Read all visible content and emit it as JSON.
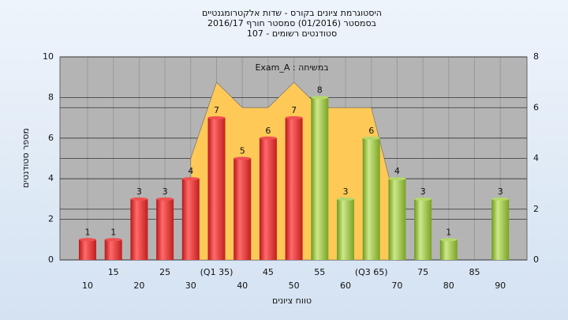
{
  "chart_data": {
    "type": "bar",
    "title": [
      "היסטוגרמת ציונים בקורס - שדות אלקטרומגנטיים",
      "בסמסטר (01/2016) סמסטר חורף 2016/17",
      "סטודנטים רשומים - 107"
    ],
    "annotation": "Exam_A : במשיחה",
    "x_label": "טווח ציונים",
    "y_label": "מספר סטודנטים",
    "categories": [
      "10",
      "15",
      "20",
      "25",
      "30",
      "(Q1 35)",
      "40",
      "45",
      "50",
      "55",
      "60",
      "(Q3 65)",
      "70",
      "75",
      "80",
      "85",
      "90"
    ],
    "series": [
      {
        "color": "#e83434",
        "values": [
          1,
          1,
          3,
          3,
          4,
          7,
          5,
          6,
          7,
          null,
          null,
          null,
          null,
          null,
          null,
          null,
          null
        ]
      },
      {
        "color": "#9cc43c",
        "values": [
          null,
          null,
          null,
          null,
          null,
          null,
          null,
          null,
          null,
          8,
          3,
          6,
          4,
          3,
          1,
          null,
          3
        ]
      },
      {
        "type": "area",
        "axis": "y2",
        "color": "#ffc957",
        "values": [
          null,
          null,
          null,
          null,
          4,
          7,
          6,
          6,
          7,
          6,
          6,
          6,
          2,
          null,
          null,
          null,
          null
        ]
      }
    ],
    "ylim": [
      0,
      10
    ],
    "yticks": [
      0,
      2,
      4,
      6,
      8,
      10
    ],
    "y2lim": [
      0,
      8
    ],
    "y2ticks": [
      0,
      2,
      4,
      6,
      8
    ],
    "grid": true
  }
}
